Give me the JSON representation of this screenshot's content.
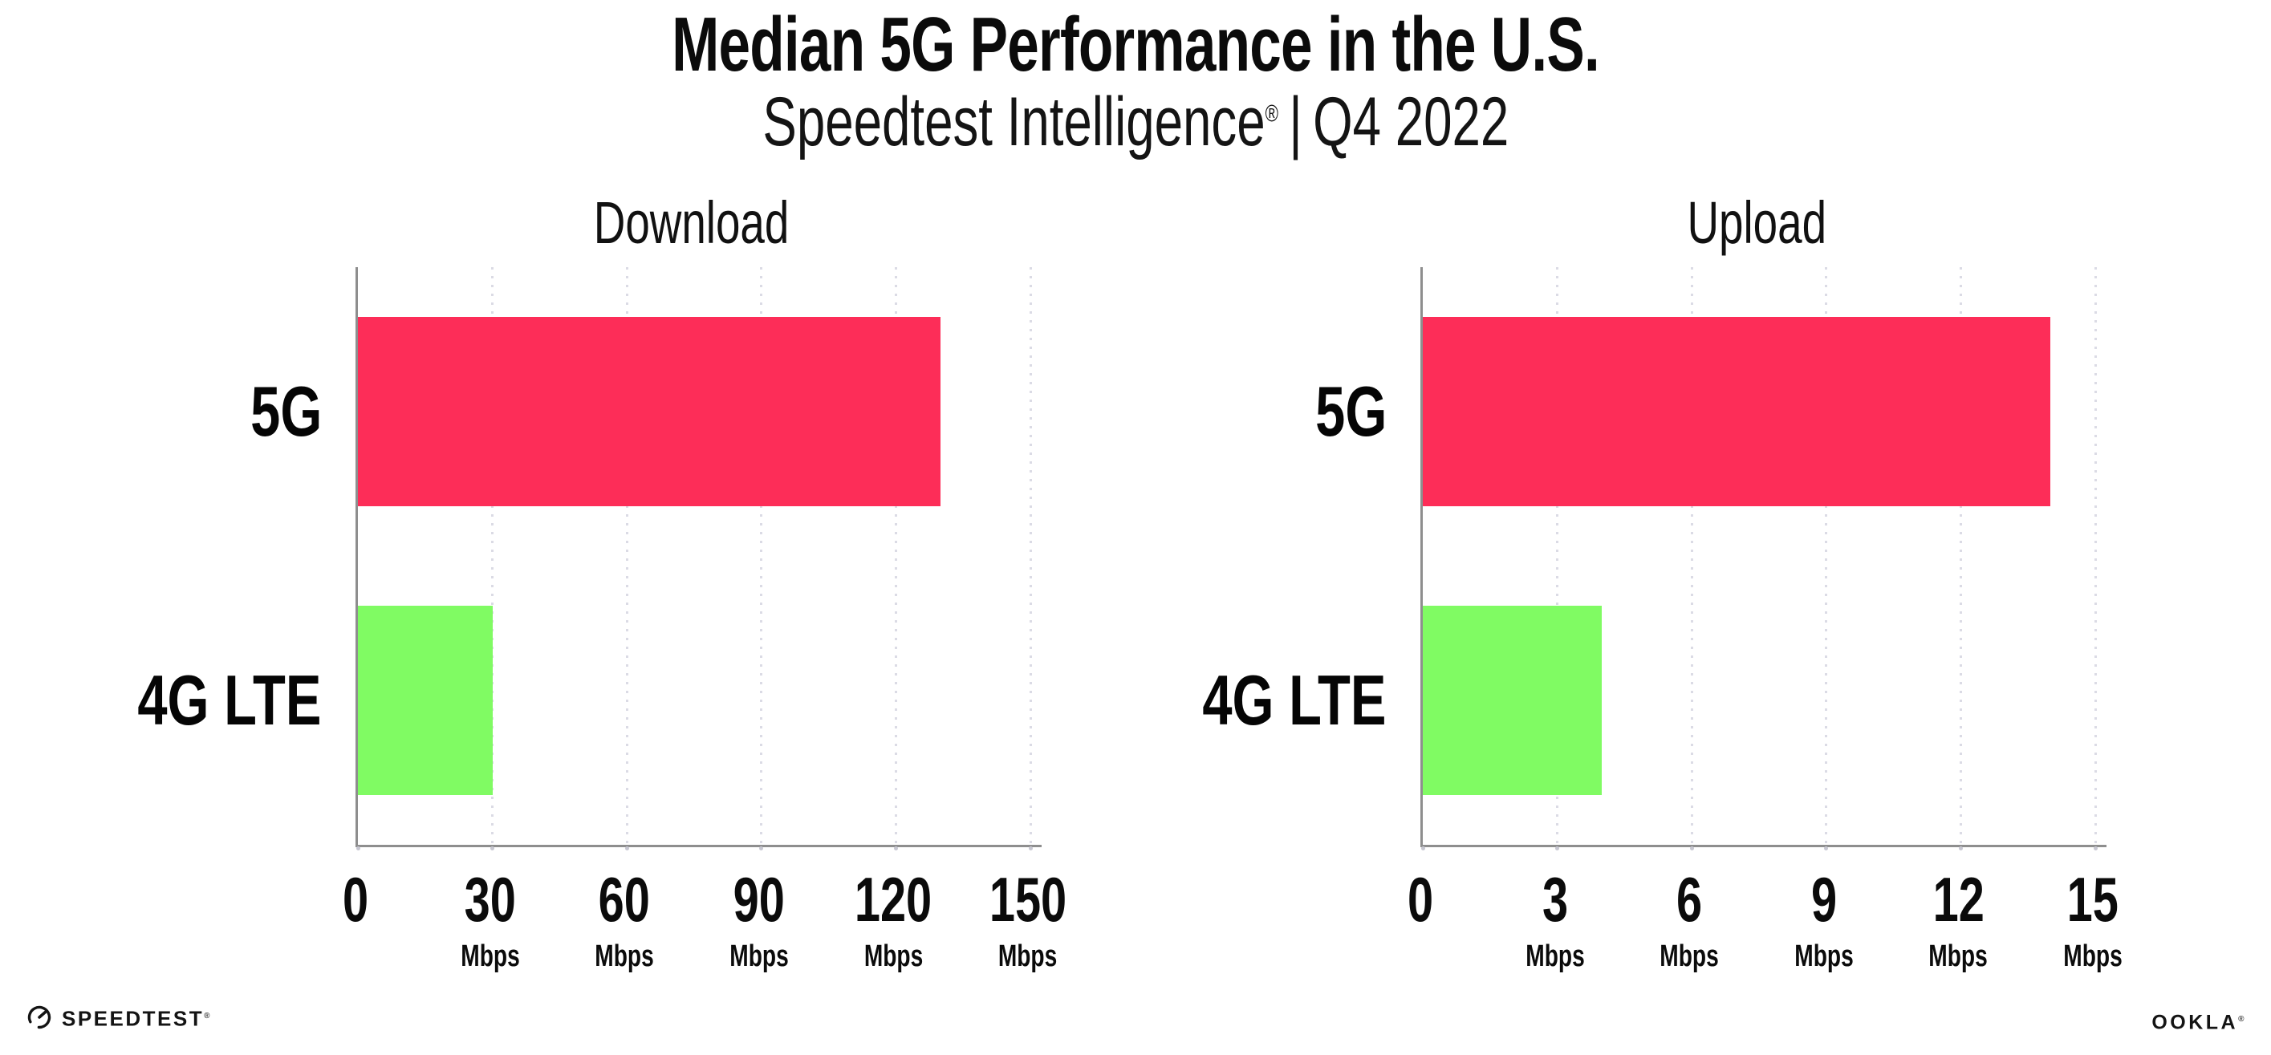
{
  "header": {
    "title": "Median 5G Performance in the U.S.",
    "subtitle_brand": "Speedtest Intelligence",
    "subtitle_reg": "®",
    "subtitle_sep": "|",
    "subtitle_period": "Q4 2022"
  },
  "footer": {
    "speedtest_label": "SPEEDTEST",
    "speedtest_mark": "®",
    "ookla_label": "OOKLA",
    "ookla_mark": "®"
  },
  "colors": {
    "bar_5g": "#FD2D58",
    "bar_4g_lte": "#80FB63",
    "axis": "#8E8E8E",
    "grid_dot": "#DBDBE5",
    "text": "#0B0B0B"
  },
  "chart_data": [
    {
      "type": "bar",
      "orientation": "horizontal",
      "title": "Download",
      "categories": [
        "5G",
        "4G LTE"
      ],
      "values": [
        130,
        30
      ],
      "unit": "Mbps",
      "xlim": [
        0,
        150
      ],
      "xticks": [
        0,
        30,
        60,
        90,
        120,
        150
      ],
      "bar_colors": [
        "#FD2D58",
        "#80FB63"
      ],
      "grid": "vertical-dotted",
      "legend": "none"
    },
    {
      "type": "bar",
      "orientation": "horizontal",
      "title": "Upload",
      "categories": [
        "5G",
        "4G LTE"
      ],
      "values": [
        14,
        4
      ],
      "unit": "Mbps",
      "xlim": [
        0,
        15
      ],
      "xticks": [
        0,
        3,
        6,
        9,
        12,
        15
      ],
      "bar_colors": [
        "#FD2D58",
        "#80FB63"
      ],
      "grid": "vertical-dotted",
      "legend": "none"
    }
  ]
}
